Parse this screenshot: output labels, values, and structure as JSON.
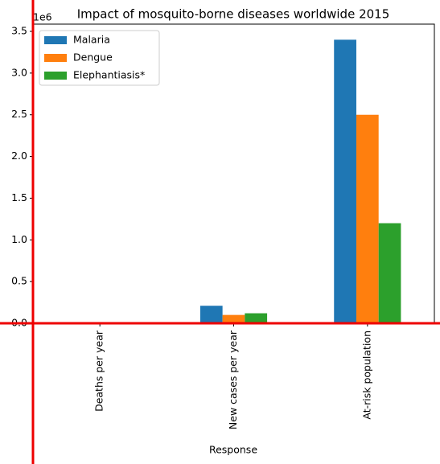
{
  "chart_data": {
    "type": "bar",
    "title": "Impact of mosquito-borne diseases worldwide 2015",
    "x_label": "Response",
    "y_offset_label": "1e6",
    "categories": [
      "Deaths per year",
      "New cases per year",
      "At-risk population"
    ],
    "series": [
      {
        "name": "Malaria",
        "color": "#1f77b4",
        "values": [
          0,
          0.21,
          3.4
        ]
      },
      {
        "name": "Dengue",
        "color": "#ff7f0e",
        "values": [
          0,
          0.1,
          2.5
        ]
      },
      {
        "name": "Elephantiasis*",
        "color": "#2ca02c",
        "values": [
          0,
          0.12,
          1.2
        ]
      }
    ],
    "ylim": [
      0,
      3.587
    ],
    "yticks": [
      {
        "value": 0,
        "label": "0.0"
      },
      0.5,
      {
        "value": 1,
        "label": "1.0"
      },
      1.5,
      {
        "value": 2,
        "label": "2.0"
      },
      2.5,
      {
        "value": 3,
        "label": "3.0"
      },
      3.5
    ],
    "legend": "upper left"
  }
}
